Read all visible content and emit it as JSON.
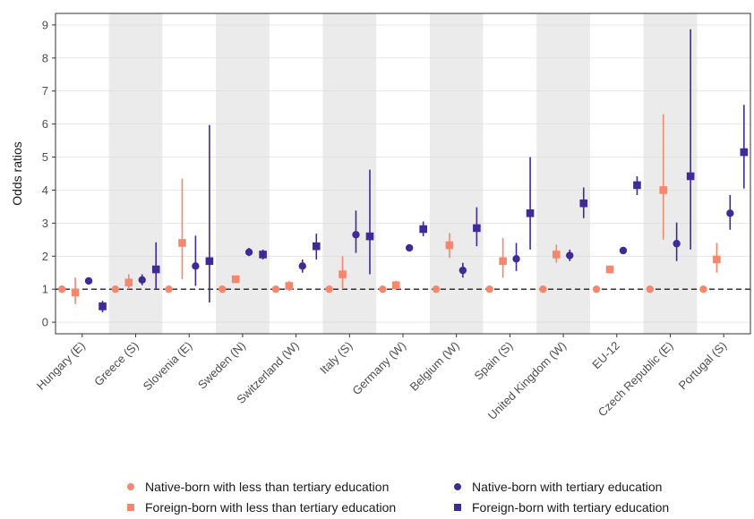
{
  "chart_data": {
    "type": "scatter",
    "title": "",
    "xlabel": "",
    "ylabel": "Odds ratios",
    "ylim": [
      -0.35,
      9.35
    ],
    "yticks": [
      0,
      1,
      2,
      3,
      4,
      5,
      6,
      7,
      8,
      9
    ],
    "reference_line": 1,
    "grid": true,
    "legend_position": "bottom",
    "categories": [
      "Hungary (E)",
      "Greece (S)",
      "Slovenia (E)",
      "Sweden (N)",
      "Switzerland (W)",
      "Italy (S)",
      "Germany (W)",
      "Belgium (W)",
      "Spain (S)",
      "United Kingdom (W)",
      "EU-12",
      "Czech Republic (E)",
      "Portugal (S)"
    ],
    "shaded_categories": [
      1,
      3,
      5,
      7,
      9,
      11
    ],
    "series": [
      {
        "name": "Native-born with less than tertiary education",
        "color": "#f4876e",
        "marker": "circle",
        "values": [
          1,
          1,
          1,
          1,
          1,
          1,
          1,
          1,
          1,
          1,
          1,
          1,
          1
        ],
        "lower": [
          null,
          null,
          null,
          null,
          null,
          null,
          null,
          null,
          null,
          null,
          null,
          null,
          null
        ],
        "upper": [
          null,
          null,
          null,
          null,
          null,
          null,
          null,
          null,
          null,
          null,
          null,
          null,
          null
        ]
      },
      {
        "name": "Foreign-born with less than tertiary education",
        "color": "#f4876e",
        "marker": "square",
        "values": [
          0.9,
          1.2,
          2.4,
          1.3,
          1.1,
          1.45,
          1.12,
          2.33,
          1.85,
          2.05,
          1.6,
          4.0,
          1.9
        ],
        "lower": [
          0.55,
          1.0,
          1.3,
          1.2,
          0.95,
          1.0,
          1.0,
          1.95,
          1.35,
          1.8,
          1.5,
          2.5,
          1.5
        ],
        "upper": [
          1.35,
          1.45,
          4.35,
          1.4,
          1.25,
          2.0,
          1.25,
          2.7,
          2.55,
          2.35,
          1.7,
          6.3,
          2.4
        ]
      },
      {
        "name": "Native-born with tertiary education",
        "color": "#3f2a96",
        "marker": "circle",
        "values": [
          1.25,
          1.28,
          1.7,
          2.12,
          1.7,
          2.65,
          2.25,
          1.57,
          1.92,
          2.02,
          2.17,
          2.38,
          3.3
        ],
        "lower": [
          1.15,
          1.12,
          1.1,
          2.0,
          1.5,
          2.1,
          2.15,
          1.35,
          1.55,
          1.85,
          2.1,
          1.85,
          2.8
        ],
        "upper": [
          1.35,
          1.45,
          2.62,
          2.25,
          1.9,
          3.38,
          2.35,
          1.8,
          2.4,
          2.2,
          2.25,
          3.02,
          3.85
        ]
      },
      {
        "name": "Foreign-born with tertiary education",
        "color": "#3f2a96",
        "marker": "square",
        "values": [
          0.48,
          1.6,
          1.85,
          2.05,
          2.3,
          2.6,
          2.82,
          2.85,
          3.3,
          3.6,
          4.15,
          4.42,
          5.15
        ],
        "lower": [
          0.3,
          1.0,
          0.6,
          1.9,
          1.9,
          1.45,
          2.6,
          2.3,
          2.2,
          3.15,
          3.85,
          2.2,
          4.05
        ],
        "upper": [
          0.65,
          2.42,
          5.97,
          2.2,
          2.68,
          4.62,
          3.05,
          3.48,
          5.0,
          4.08,
          4.42,
          8.87,
          6.58
        ]
      }
    ]
  }
}
